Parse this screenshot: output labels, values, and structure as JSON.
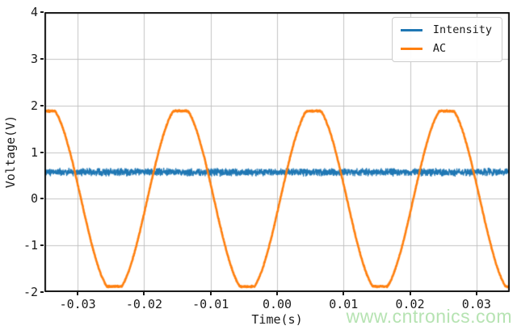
{
  "watermark": {
    "text": "www.cntronics.com",
    "color": "#b6e3b2"
  },
  "chart_data": {
    "type": "line",
    "title": "",
    "xlabel": "Time(s)",
    "ylabel": "Voltage(V)",
    "xlim": [
      -0.035,
      0.035
    ],
    "ylim": [
      -2,
      4
    ],
    "xticks": [
      -0.03,
      -0.02,
      -0.01,
      0,
      0.01,
      0.02,
      0.03
    ],
    "xtick_labels": [
      "-0.03",
      "-0.02",
      "-0.01",
      "0.00",
      "0.01",
      "0.02",
      "0.03"
    ],
    "yticks": [
      -2,
      -1,
      0,
      1,
      2,
      3,
      4
    ],
    "ytick_labels": [
      "-2",
      "-1",
      "0",
      "1",
      "2",
      "3",
      "4"
    ],
    "grid": true,
    "grid_color": "#c3c3c3",
    "spine_color": "#111111",
    "legend_position": "upper right",
    "legend_entries": [
      "Intensity",
      "AC"
    ],
    "series": [
      {
        "name": "Intensity",
        "color": "#1f77b4",
        "signal": {
          "type": "noisy_constant",
          "mean_v": 0.57,
          "noise_v": 0.09,
          "description": "flat noisy trace at ~0.57 V, band ~0.48-0.66 V"
        }
      },
      {
        "name": "AC",
        "color": "#ff7f0e",
        "signal": {
          "type": "clipped_sine",
          "amplitude_v": 2.0,
          "clip_v": 1.88,
          "period_s": 0.02,
          "frequency_hz": 50,
          "peak_time_s": 0.0055,
          "noise_v": 0.02,
          "description": "sine wave with flattened peaks at +/-1.9 V; maxima near t=-0.0345,-0.0145,0.0055,0.0255; minima near t=-0.0245,-0.0045,0.0155,0.0355"
        }
      }
    ]
  }
}
